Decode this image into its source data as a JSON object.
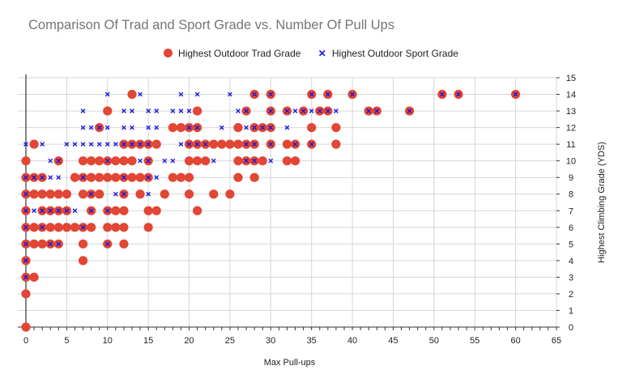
{
  "chart_data": {
    "type": "scatter",
    "title": "Comparison Of Trad and Sport Grade vs. Number Of Pull Ups",
    "xlabel": "Max Pull-ups",
    "ylabel": "Highest Climbing Grade (YDS)",
    "xlim": [
      0,
      65
    ],
    "ylim": [
      0,
      15
    ],
    "x_ticks": [
      0,
      5,
      10,
      15,
      20,
      25,
      30,
      35,
      40,
      45,
      50,
      55,
      60,
      65
    ],
    "y_ticks": [
      0,
      1,
      2,
      3,
      4,
      5,
      6,
      7,
      8,
      9,
      10,
      11,
      12,
      13,
      14,
      15
    ],
    "grid": true,
    "legend_position": "top",
    "series": [
      {
        "name": "Highest Outdoor Trad Grade",
        "marker": "circle",
        "color": "#e24634",
        "points": [
          [
            0,
            0
          ],
          [
            0,
            2
          ],
          [
            0,
            3
          ],
          [
            0,
            4
          ],
          [
            0,
            5
          ],
          [
            0,
            6
          ],
          [
            0,
            7
          ],
          [
            0,
            8
          ],
          [
            0,
            9
          ],
          [
            0,
            10
          ],
          [
            1,
            3
          ],
          [
            1,
            5
          ],
          [
            1,
            6
          ],
          [
            1,
            8
          ],
          [
            1,
            9
          ],
          [
            1,
            11
          ],
          [
            2,
            5
          ],
          [
            2,
            6
          ],
          [
            2,
            7
          ],
          [
            2,
            8
          ],
          [
            2,
            9
          ],
          [
            3,
            5
          ],
          [
            3,
            6
          ],
          [
            3,
            7
          ],
          [
            3,
            8
          ],
          [
            4,
            5
          ],
          [
            4,
            6
          ],
          [
            4,
            7
          ],
          [
            4,
            8
          ],
          [
            4,
            10
          ],
          [
            5,
            6
          ],
          [
            5,
            7
          ],
          [
            5,
            8
          ],
          [
            6,
            6
          ],
          [
            6,
            9
          ],
          [
            7,
            4
          ],
          [
            7,
            5
          ],
          [
            7,
            6
          ],
          [
            7,
            8
          ],
          [
            7,
            9
          ],
          [
            7,
            10
          ],
          [
            8,
            6
          ],
          [
            8,
            7
          ],
          [
            8,
            8
          ],
          [
            8,
            9
          ],
          [
            8,
            10
          ],
          [
            9,
            8
          ],
          [
            9,
            9
          ],
          [
            9,
            10
          ],
          [
            9,
            12
          ],
          [
            10,
            5
          ],
          [
            10,
            6
          ],
          [
            10,
            7
          ],
          [
            10,
            9
          ],
          [
            10,
            10
          ],
          [
            10,
            13
          ],
          [
            11,
            6
          ],
          [
            11,
            7
          ],
          [
            11,
            9
          ],
          [
            11,
            10
          ],
          [
            12,
            5
          ],
          [
            12,
            6
          ],
          [
            12,
            7
          ],
          [
            12,
            8
          ],
          [
            12,
            9
          ],
          [
            12,
            10
          ],
          [
            12,
            11
          ],
          [
            13,
            9
          ],
          [
            13,
            10
          ],
          [
            13,
            11
          ],
          [
            13,
            14
          ],
          [
            14,
            8
          ],
          [
            14,
            9
          ],
          [
            14,
            11
          ],
          [
            15,
            6
          ],
          [
            15,
            7
          ],
          [
            15,
            9
          ],
          [
            15,
            10
          ],
          [
            15,
            11
          ],
          [
            16,
            7
          ],
          [
            16,
            11
          ],
          [
            17,
            8
          ],
          [
            18,
            9
          ],
          [
            18,
            12
          ],
          [
            19,
            9
          ],
          [
            19,
            12
          ],
          [
            20,
            8
          ],
          [
            20,
            9
          ],
          [
            20,
            10
          ],
          [
            20,
            11
          ],
          [
            20,
            12
          ],
          [
            21,
            7
          ],
          [
            21,
            10
          ],
          [
            21,
            11
          ],
          [
            21,
            12
          ],
          [
            21,
            13
          ],
          [
            22,
            10
          ],
          [
            22,
            11
          ],
          [
            23,
            8
          ],
          [
            23,
            11
          ],
          [
            24,
            11
          ],
          [
            25,
            8
          ],
          [
            25,
            11
          ],
          [
            26,
            9
          ],
          [
            26,
            10
          ],
          [
            26,
            11
          ],
          [
            26,
            12
          ],
          [
            27,
            10
          ],
          [
            27,
            11
          ],
          [
            27,
            13
          ],
          [
            28,
            9
          ],
          [
            28,
            10
          ],
          [
            28,
            11
          ],
          [
            28,
            12
          ],
          [
            28,
            14
          ],
          [
            29,
            10
          ],
          [
            29,
            12
          ],
          [
            30,
            11
          ],
          [
            30,
            12
          ],
          [
            30,
            13
          ],
          [
            30,
            14
          ],
          [
            32,
            10
          ],
          [
            32,
            11
          ],
          [
            32,
            13
          ],
          [
            33,
            10
          ],
          [
            33,
            11
          ],
          [
            34,
            13
          ],
          [
            35,
            11
          ],
          [
            35,
            12
          ],
          [
            35,
            14
          ],
          [
            36,
            13
          ],
          [
            37,
            13
          ],
          [
            37,
            14
          ],
          [
            38,
            11
          ],
          [
            38,
            12
          ],
          [
            40,
            14
          ],
          [
            42,
            13
          ],
          [
            43,
            13
          ],
          [
            47,
            13
          ],
          [
            51,
            14
          ],
          [
            53,
            14
          ],
          [
            60,
            14
          ]
        ]
      },
      {
        "name": "Highest Outdoor Sport Grade",
        "marker": "x",
        "color": "#1a1ad8",
        "points": [
          [
            0,
            3
          ],
          [
            0,
            4
          ],
          [
            0,
            5
          ],
          [
            0,
            6
          ],
          [
            0,
            7
          ],
          [
            0,
            8
          ],
          [
            0,
            9
          ],
          [
            0,
            11
          ],
          [
            1,
            7
          ],
          [
            1,
            9
          ],
          [
            2,
            6
          ],
          [
            2,
            7
          ],
          [
            2,
            9
          ],
          [
            2,
            11
          ],
          [
            3,
            5
          ],
          [
            3,
            7
          ],
          [
            3,
            9
          ],
          [
            3,
            10
          ],
          [
            4,
            5
          ],
          [
            4,
            7
          ],
          [
            4,
            9
          ],
          [
            4,
            10
          ],
          [
            5,
            7
          ],
          [
            5,
            11
          ],
          [
            6,
            7
          ],
          [
            6,
            11
          ],
          [
            7,
            6
          ],
          [
            7,
            9
          ],
          [
            7,
            11
          ],
          [
            7,
            12
          ],
          [
            7,
            13
          ],
          [
            8,
            7
          ],
          [
            8,
            8
          ],
          [
            8,
            11
          ],
          [
            8,
            12
          ],
          [
            9,
            11
          ],
          [
            9,
            12
          ],
          [
            10,
            5
          ],
          [
            10,
            7
          ],
          [
            10,
            10
          ],
          [
            10,
            11
          ],
          [
            10,
            12
          ],
          [
            10,
            14
          ],
          [
            11,
            8
          ],
          [
            11,
            11
          ],
          [
            12,
            8
          ],
          [
            12,
            9
          ],
          [
            12,
            11
          ],
          [
            12,
            12
          ],
          [
            12,
            13
          ],
          [
            13,
            11
          ],
          [
            13,
            12
          ],
          [
            13,
            13
          ],
          [
            14,
            10
          ],
          [
            14,
            11
          ],
          [
            14,
            14
          ],
          [
            15,
            8
          ],
          [
            15,
            9
          ],
          [
            15,
            10
          ],
          [
            15,
            11
          ],
          [
            15,
            12
          ],
          [
            15,
            13
          ],
          [
            16,
            9
          ],
          [
            16,
            12
          ],
          [
            16,
            13
          ],
          [
            17,
            10
          ],
          [
            18,
            10
          ],
          [
            18,
            13
          ],
          [
            19,
            11
          ],
          [
            19,
            13
          ],
          [
            19,
            14
          ],
          [
            20,
            11
          ],
          [
            20,
            12
          ],
          [
            20,
            13
          ],
          [
            21,
            11
          ],
          [
            21,
            12
          ],
          [
            21,
            14
          ],
          [
            22,
            11
          ],
          [
            23,
            10
          ],
          [
            24,
            12
          ],
          [
            25,
            14
          ],
          [
            26,
            13
          ],
          [
            27,
            10
          ],
          [
            27,
            11
          ],
          [
            27,
            12
          ],
          [
            27,
            13
          ],
          [
            28,
            10
          ],
          [
            28,
            11
          ],
          [
            28,
            12
          ],
          [
            28,
            14
          ],
          [
            29,
            12
          ],
          [
            30,
            10
          ],
          [
            30,
            11
          ],
          [
            30,
            12
          ],
          [
            30,
            13
          ],
          [
            30,
            14
          ],
          [
            32,
            12
          ],
          [
            32,
            13
          ],
          [
            33,
            11
          ],
          [
            33,
            13
          ],
          [
            34,
            13
          ],
          [
            35,
            11
          ],
          [
            35,
            13
          ],
          [
            35,
            14
          ],
          [
            36,
            13
          ],
          [
            37,
            13
          ],
          [
            37,
            14
          ],
          [
            38,
            13
          ],
          [
            40,
            14
          ],
          [
            42,
            13
          ],
          [
            43,
            13
          ],
          [
            47,
            13
          ],
          [
            51,
            14
          ],
          [
            53,
            14
          ],
          [
            60,
            14
          ]
        ]
      }
    ]
  }
}
